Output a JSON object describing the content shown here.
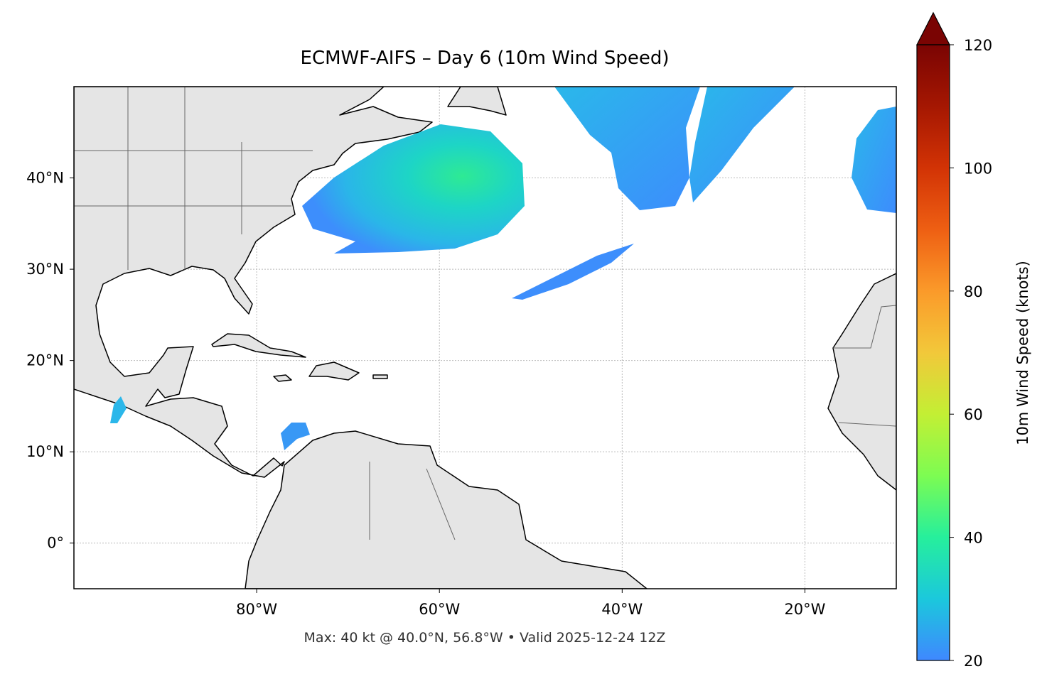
{
  "map": {
    "title": "ECMWF-AIFS – Day 6 (10m Wind Speed)",
    "xlim": [
      -100,
      -10
    ],
    "ylim": [
      -5,
      50
    ],
    "xticks": [
      {
        "value": -80,
        "label": "80°W"
      },
      {
        "value": -60,
        "label": "60°W"
      },
      {
        "value": -40,
        "label": "40°W"
      },
      {
        "value": -20,
        "label": "20°W"
      }
    ],
    "yticks": [
      {
        "value": 0,
        "label": "0°"
      },
      {
        "value": 10,
        "label": "10°N"
      },
      {
        "value": 20,
        "label": "20°N"
      },
      {
        "value": 30,
        "label": "30°N"
      },
      {
        "value": 40,
        "label": "40°N"
      }
    ],
    "grid": true,
    "footer": "Max: 40 kt @ 40.0°N, 56.8°W • Valid 2025-12-24 12Z"
  },
  "colorbar": {
    "label": "10m Wind Speed (knots)",
    "lim": [
      20,
      120
    ],
    "ticks": [
      20,
      40,
      60,
      80,
      100,
      120
    ],
    "extend": "max"
  }
}
